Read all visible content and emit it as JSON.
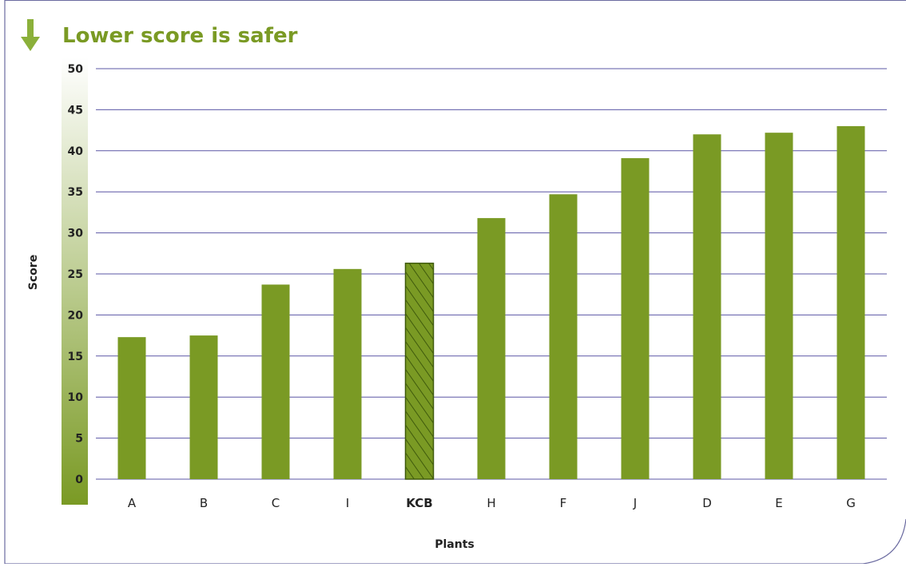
{
  "chart_data": {
    "type": "bar",
    "title": "Lower score is safer",
    "xlabel": "Plants",
    "ylabel": "Score",
    "ylim": [
      0,
      50
    ],
    "yticks": [
      0,
      5,
      10,
      15,
      20,
      25,
      30,
      35,
      40,
      45,
      50
    ],
    "grid": true,
    "categories": [
      "A",
      "B",
      "C",
      "I",
      "KCB",
      "H",
      "F",
      "J",
      "D",
      "E",
      "G"
    ],
    "values": [
      17.3,
      17.5,
      23.7,
      25.6,
      26.3,
      31.8,
      34.7,
      39.1,
      42.0,
      42.2,
      43.0
    ],
    "highlight": "KCB",
    "colors": {
      "bar": "#7a9a24",
      "bar_stroke": "#5c7a14",
      "title": "#7a9a24",
      "grid": "#5b57a6",
      "arrow": "#8bb03a",
      "frame": "#6a6aa0",
      "axis_gradient_top": "#ffffff",
      "axis_gradient_bottom": "#7a9a24"
    }
  }
}
